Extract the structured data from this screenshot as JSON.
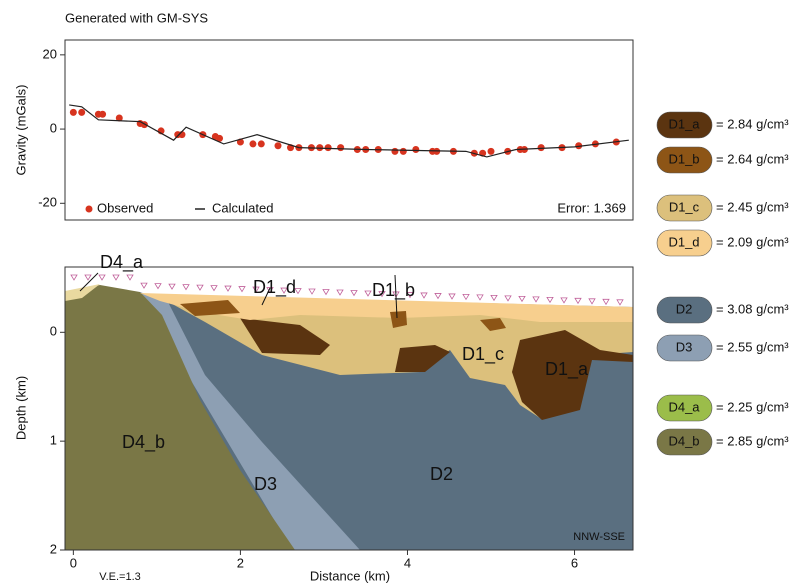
{
  "header": "Generated with GM-SYS",
  "chart_data": [
    {
      "type": "scatter",
      "y_label": "Gravity (mGals)",
      "xlim": [
        -0.1,
        6.7
      ],
      "ylim": [
        -24.5,
        24
      ],
      "yticks": [
        20,
        0,
        -20
      ],
      "series": [
        {
          "name": "Observed",
          "color": "#d7341f",
          "style": "markers",
          "x": [
            0,
            0.1,
            0.3,
            0.35,
            0.55,
            0.8,
            0.85,
            1.05,
            1.25,
            1.3,
            1.55,
            1.7,
            1.75,
            2.0,
            2.15,
            2.25,
            2.45,
            2.6,
            2.7,
            2.85,
            2.95,
            3.05,
            3.2,
            3.4,
            3.5,
            3.65,
            3.85,
            3.95,
            4.1,
            4.3,
            4.35,
            4.55,
            4.8,
            4.9,
            5.0,
            5.2,
            5.35,
            5.4,
            5.6,
            5.85,
            6.05,
            6.25,
            6.5
          ],
          "values": [
            4.5,
            4.5,
            4,
            4,
            3,
            1.5,
            1.2,
            -0.5,
            -1.5,
            -1.5,
            -1.5,
            -2,
            -2.5,
            -3.5,
            -4,
            -4,
            -4.5,
            -5,
            -5,
            -5,
            -5,
            -5,
            -5,
            -5.5,
            -5.5,
            -5.5,
            -6,
            -6,
            -5.5,
            -6,
            -6,
            -6,
            -6.5,
            -6.5,
            -6,
            -6,
            -5.5,
            -5.5,
            -5,
            -5,
            -4.5,
            -4,
            -3.5
          ]
        },
        {
          "name": "Calculated",
          "color": "#222222",
          "style": "line",
          "x": [
            -0.05,
            0.1,
            0.3,
            0.8,
            1.2,
            1.35,
            1.8,
            2.2,
            2.7,
            3.5,
            4.2,
            4.7,
            4.95,
            5.3,
            6.0,
            6.65
          ],
          "values": [
            6.5,
            6,
            2.5,
            2,
            -3,
            0.5,
            -4,
            -1.5,
            -5,
            -5.5,
            -5.8,
            -6,
            -7.5,
            -5.5,
            -4.8,
            -3
          ]
        }
      ],
      "error_text": "Error: 1.369"
    },
    {
      "type": "cross-section",
      "x_label": "Distance (km)",
      "y_label": "Depth (km)",
      "xlim": [
        -0.1,
        6.7
      ],
      "xticks": [
        0,
        2,
        4,
        6
      ],
      "ylim": [
        -0.6,
        2
      ],
      "yticks": [
        0,
        1,
        2
      ],
      "note": "V.E.=1.3",
      "direction": "NNW-SSE",
      "labels": [
        "D4_a",
        "D1_d",
        "D1_b",
        "D1_c",
        "D1_a",
        "D4_b",
        "D3",
        "D2"
      ],
      "legend": [
        {
          "name": "D1_a",
          "color": "#5b3410",
          "text": "= 2.84 g/cm³"
        },
        {
          "name": "D1_b",
          "color": "#8d5516",
          "text": "= 2.64 g/cm³"
        },
        {
          "name": "D1_c",
          "color": "#dcc07c",
          "text": "= 2.45 g/cm³"
        },
        {
          "name": "D1_d",
          "color": "#f7cf8e",
          "text": "= 2.09 g/cm³"
        },
        {
          "name": "D2",
          "color": "#5a6f80",
          "text": "= 3.08 g/cm³"
        },
        {
          "name": "D3",
          "color": "#8d9fb3",
          "text": "= 2.55 g/cm³"
        },
        {
          "name": "D4_a",
          "color": "#9bbd4a",
          "text": "= 2.25 g/cm³"
        },
        {
          "name": "D4_b",
          "color": "#7a7746",
          "text": "= 2.85 g/cm³"
        }
      ]
    }
  ]
}
